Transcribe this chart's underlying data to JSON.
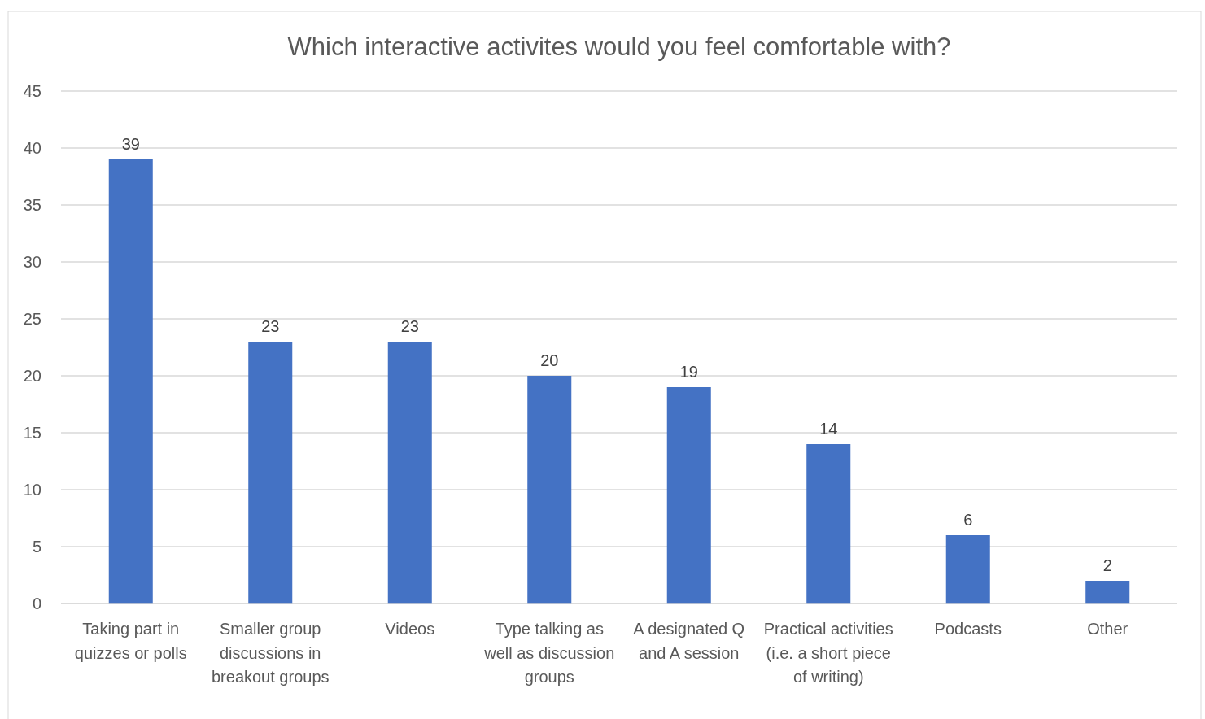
{
  "chart_data": {
    "type": "bar",
    "title": "Which interactive activites would you feel comfortable with?",
    "categories": [
      "Taking part in quizzes or polls",
      "Smaller group discussions in breakout groups",
      "Videos",
      "Type talking as well as discussion groups",
      "A designated Q and A session",
      "Practical activities (i.e. a short piece of writing)",
      "Podcasts",
      "Other"
    ],
    "values": [
      39,
      23,
      23,
      20,
      19,
      14,
      6,
      2
    ],
    "color": "#4472c4",
    "ylim": [
      0,
      45
    ],
    "yticks": [
      0,
      5,
      10,
      15,
      20,
      25,
      30,
      35,
      40,
      45
    ],
    "grid": "y",
    "data_labels": true
  }
}
